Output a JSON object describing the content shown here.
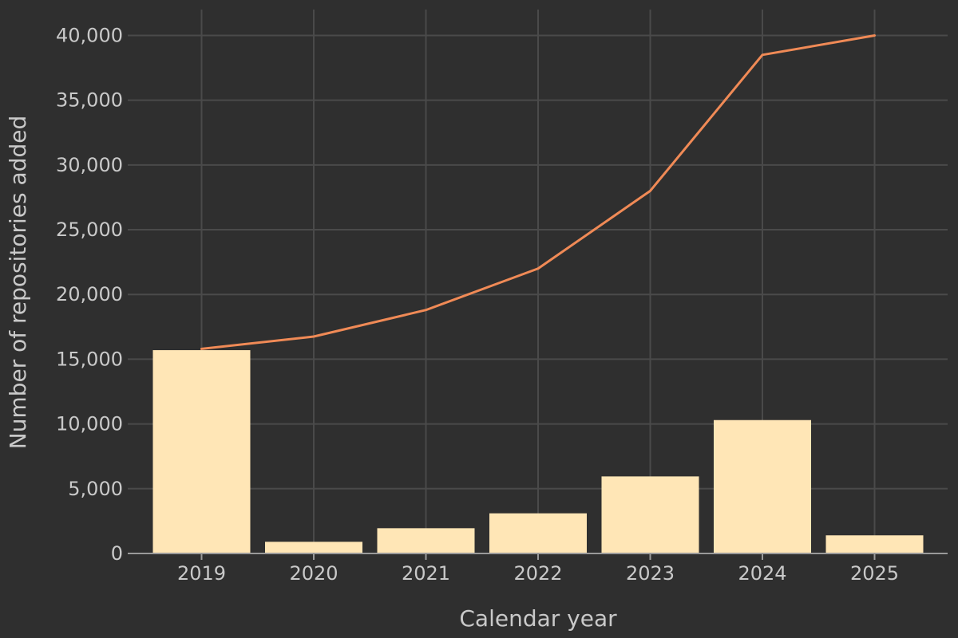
{
  "chart_data": {
    "type": "bar",
    "title": "",
    "xlabel": "Calendar year",
    "ylabel": "Number of repositories added",
    "categories": [
      "2019",
      "2020",
      "2021",
      "2022",
      "2023",
      "2024",
      "2025"
    ],
    "series": [
      {
        "type": "bar",
        "values": [
          15700,
          900,
          1950,
          3100,
          5950,
          10300,
          1400
        ]
      },
      {
        "type": "line",
        "values": [
          15800,
          16750,
          18800,
          22000,
          28000,
          38500,
          40000
        ]
      }
    ],
    "y_ticks": [
      "0",
      "5,000",
      "10,000",
      "15,000",
      "20,000",
      "25,000",
      "30,000",
      "35,000",
      "40,000"
    ],
    "ylim": [
      0,
      42000
    ],
    "grid": true,
    "legend": "none",
    "colors": {
      "background": "#2f2f2f",
      "bar": "#ffe6b6",
      "line": "#f08a56",
      "grid": "#4a4a4a",
      "text": "#c9c9c9"
    }
  }
}
